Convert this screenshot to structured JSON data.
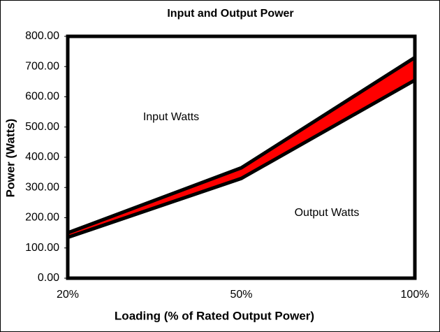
{
  "chart_data": {
    "type": "line",
    "title": "Input and Output Power",
    "x_label": "Loading (% of Rated Output Power)",
    "y_label": "Power (Watts)",
    "categories": [
      "20%",
      "50%",
      "100%"
    ],
    "series": [
      {
        "name": "Input Watts",
        "color": "#000000",
        "values": [
          150,
          365,
          730
        ]
      },
      {
        "name": "Output Watts",
        "color": "#000000",
        "values": [
          135,
          330,
          655
        ]
      }
    ],
    "fill_between_color": "#ff0000",
    "annotations": [
      "Input Watts",
      "Output Watts"
    ],
    "ylim": [
      0,
      800
    ],
    "yticks": [
      {
        "value": 0,
        "label": "0.00"
      },
      {
        "value": 100,
        "label": "100.00"
      },
      {
        "value": 200,
        "label": "200.00"
      },
      {
        "value": 300,
        "label": "300.00"
      },
      {
        "value": 400,
        "label": "400.00"
      },
      {
        "value": 500,
        "label": "500.00"
      },
      {
        "value": 600,
        "label": "600.00"
      },
      {
        "value": 700,
        "label": "700.00"
      },
      {
        "value": 800,
        "label": "800.00"
      }
    ],
    "grid": false
  }
}
